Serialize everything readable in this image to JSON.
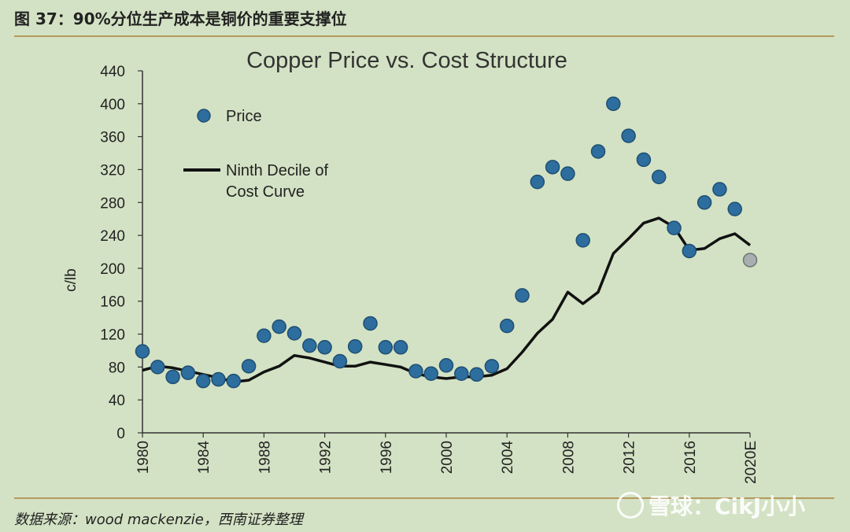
{
  "header": {
    "figure_title": "图 37：90%分位生产成本是铜价的重要支撑位",
    "source": "数据来源：wood mackenzie，西南证券整理",
    "watermark": "雪球：CikJ小小"
  },
  "chart_data": {
    "type": "scatter",
    "title": "Copper Price vs. Cost Structure",
    "ylabel": "c/lb",
    "xlabel": "",
    "ylim": [
      0,
      440
    ],
    "xlim": [
      1980,
      2020
    ],
    "yticks": [
      0,
      40,
      80,
      120,
      160,
      200,
      240,
      280,
      320,
      360,
      400,
      440
    ],
    "xticks": [
      "1980",
      "1984",
      "1988",
      "1992",
      "1996",
      "2000",
      "2004",
      "2008",
      "2012",
      "2016",
      "2020E"
    ],
    "legend": [
      "Price",
      "Ninth Decile of Cost Curve"
    ],
    "colors": {
      "price": "#2d6e9e",
      "price_edge": "#1f4f73",
      "estimate": "#a9aeb0",
      "line": "#111111"
    },
    "series": [
      {
        "name": "Price",
        "type": "scatter",
        "x": [
          1980,
          1981,
          1982,
          1983,
          1984,
          1985,
          1986,
          1987,
          1988,
          1989,
          1990,
          1991,
          1992,
          1993,
          1994,
          1995,
          1996,
          1997,
          1998,
          1999,
          2000,
          2001,
          2002,
          2003,
          2004,
          2005,
          2006,
          2007,
          2008,
          2009,
          2010,
          2011,
          2012,
          2013,
          2014,
          2015,
          2016,
          2017,
          2018,
          2019
        ],
        "y": [
          99,
          80,
          68,
          73,
          63,
          65,
          63,
          81,
          118,
          129,
          121,
          106,
          104,
          87,
          105,
          133,
          104,
          104,
          75,
          72,
          82,
          72,
          71,
          81,
          130,
          167,
          305,
          323,
          315,
          234,
          342,
          400,
          361,
          332,
          311,
          249,
          221,
          280,
          296,
          272
        ]
      },
      {
        "name": "Ninth Decile of Cost Curve",
        "type": "line",
        "x": [
          1980,
          1981,
          1982,
          1983,
          1984,
          1985,
          1986,
          1987,
          1988,
          1989,
          1990,
          1991,
          1992,
          1993,
          1994,
          1995,
          1996,
          1997,
          1998,
          1999,
          2000,
          2001,
          2002,
          2003,
          2004,
          2005,
          2006,
          2007,
          2008,
          2009,
          2010,
          2011,
          2012,
          2013,
          2014,
          2015,
          2016,
          2017,
          2018,
          2019,
          2020
        ],
        "y": [
          76,
          81,
          79,
          75,
          71,
          67,
          62,
          64,
          74,
          81,
          94,
          91,
          86,
          81,
          81,
          86,
          83,
          80,
          72,
          68,
          66,
          68,
          68,
          70,
          78,
          98,
          121,
          138,
          171,
          157,
          171,
          218,
          236,
          255,
          261,
          250,
          222,
          224,
          236,
          242,
          228
        ]
      },
      {
        "name": "",
        "type": "estimate",
        "x": [
          2020
        ],
        "y": [
          210
        ]
      }
    ]
  }
}
